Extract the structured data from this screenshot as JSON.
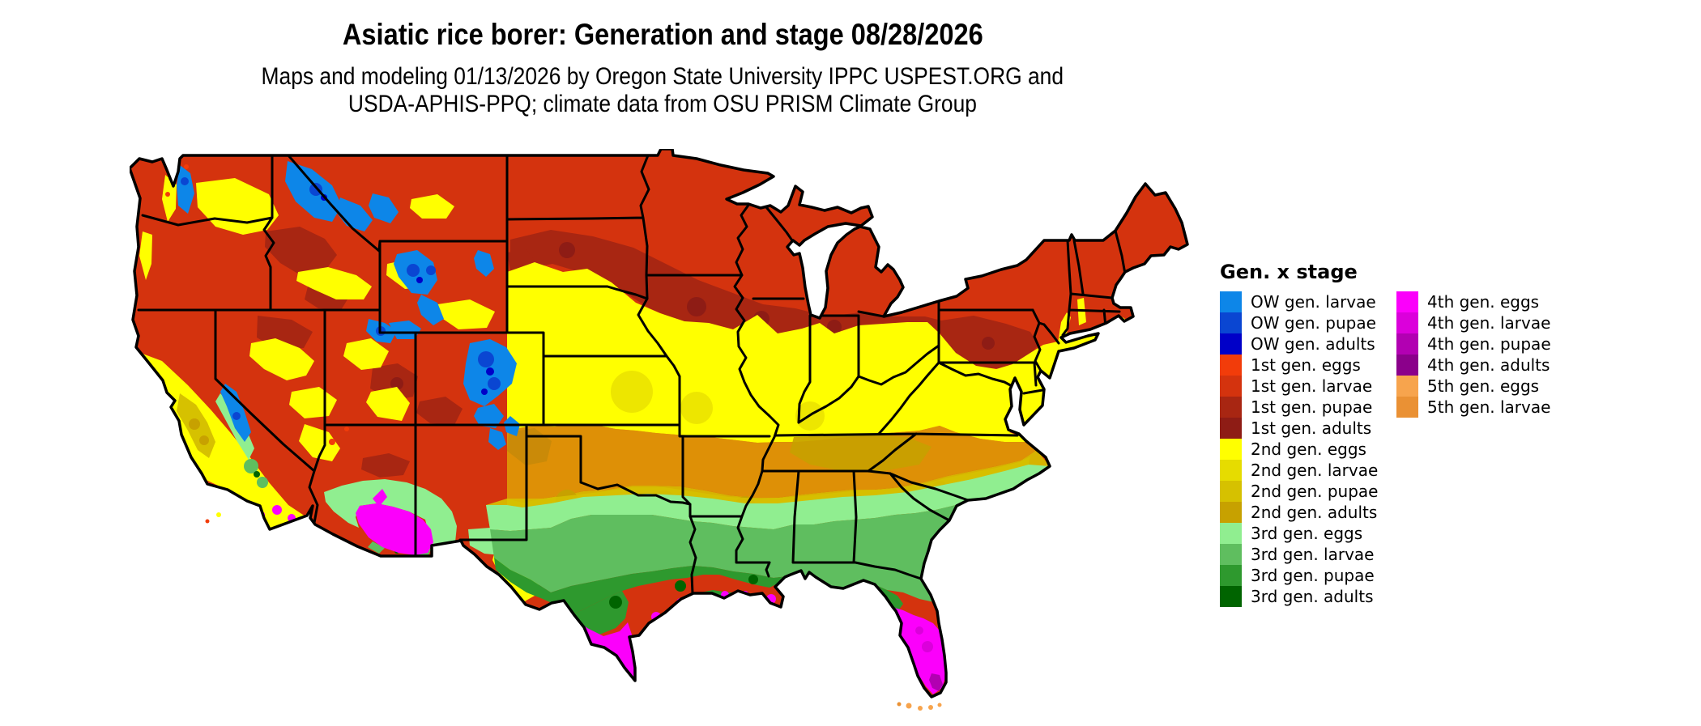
{
  "header": {
    "title": "Asiatic rice borer: Generation and stage 08/28/2026",
    "subtitle_line1": "Maps and modeling 01/13/2026 by Oregon State University IPPC USPEST.ORG and",
    "subtitle_line2": "USDA-APHIS-PPQ; climate data from OSU PRISM Climate Group"
  },
  "palette": {
    "ow_larvae": "#0D86E8",
    "ow_pupae": "#0A46D2",
    "ow_adults": "#0000C8",
    "g1_eggs": "#F23C0A",
    "g1_larvae": "#D4330E",
    "g1_pupae": "#A82612",
    "g1_adults": "#8E1C15",
    "g2_eggs": "#FFFF00",
    "g2_larvae": "#E6DC00",
    "g2_pupae": "#D6C100",
    "g2_adults": "#C7A100",
    "g3_eggs": "#90EE90",
    "g3_larvae": "#5FBE5F",
    "g3_pupae": "#2E992E",
    "g3_adults": "#006400",
    "g4_eggs": "#FB00FB",
    "g4_larvae": "#DB00DB",
    "g4_pupae": "#B200B2",
    "g4_adults": "#8B008B",
    "g5_eggs": "#F7A44D",
    "g5_larvae": "#EA9134"
  },
  "legend": {
    "title": "Gen. x stage",
    "columns": [
      {
        "entries": [
          {
            "label": "OW gen. larvae",
            "color_key": "ow_larvae"
          },
          {
            "label": "OW gen. pupae",
            "color_key": "ow_pupae"
          },
          {
            "label": "OW gen. adults",
            "color_key": "ow_adults"
          },
          {
            "label": "1st gen. eggs",
            "color_key": "g1_eggs"
          },
          {
            "label": "1st gen. larvae",
            "color_key": "g1_larvae"
          },
          {
            "label": "1st gen. pupae",
            "color_key": "g1_pupae"
          },
          {
            "label": "1st gen. adults",
            "color_key": "g1_adults"
          },
          {
            "label": "2nd gen. eggs",
            "color_key": "g2_eggs"
          },
          {
            "label": "2nd gen. larvae",
            "color_key": "g2_larvae"
          },
          {
            "label": "2nd gen. pupae",
            "color_key": "g2_pupae"
          },
          {
            "label": "2nd gen. adults",
            "color_key": "g2_adults"
          },
          {
            "label": "3rd gen. eggs",
            "color_key": "g3_eggs"
          },
          {
            "label": "3rd gen. larvae",
            "color_key": "g3_larvae"
          },
          {
            "label": "3rd gen. pupae",
            "color_key": "g3_pupae"
          },
          {
            "label": "3rd gen. adults",
            "color_key": "g3_adults"
          }
        ]
      },
      {
        "entries": [
          {
            "label": "4th gen. eggs",
            "color_key": "g4_eggs"
          },
          {
            "label": "4th gen. larvae",
            "color_key": "g4_larvae"
          },
          {
            "label": "4th gen. pupae",
            "color_key": "g4_pupae"
          },
          {
            "label": "4th gen. adults",
            "color_key": "g4_adults"
          },
          {
            "label": "5th gen. eggs",
            "color_key": "g5_eggs"
          },
          {
            "label": "5th gen. larvae",
            "color_key": "g5_larvae"
          }
        ]
      }
    ]
  },
  "map": {
    "background": "#FFFFFF",
    "boundary_color": "#000000"
  }
}
